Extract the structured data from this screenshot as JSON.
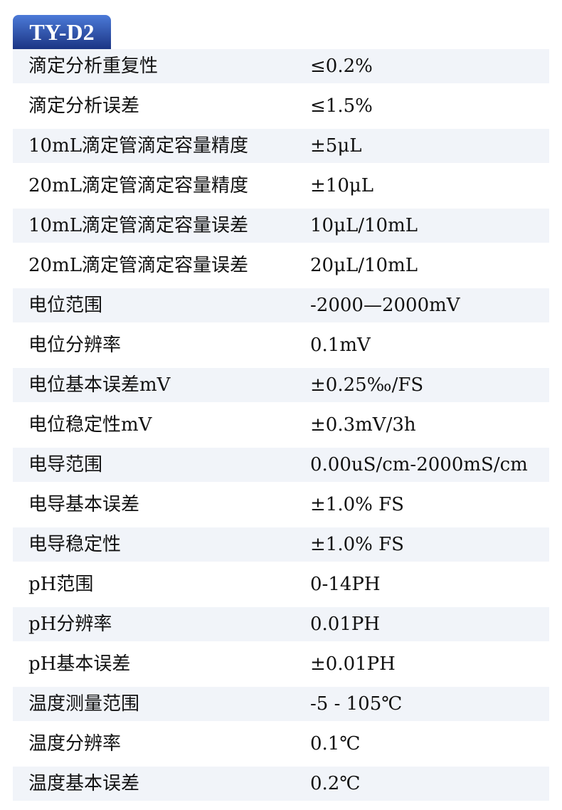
{
  "title": "TY-D2",
  "colors": {
    "header_top": "#4c7ad8",
    "header_bottom": "#1b3584",
    "row_shade": "#f1f4f9"
  },
  "rows": [
    {
      "label": "滴定分析重复性",
      "value": "≤0.2%"
    },
    {
      "label": "滴定分析误差",
      "value": "≤1.5%"
    },
    {
      "label": "10mL滴定管滴定容量精度",
      "value": "±5μL"
    },
    {
      "label": "20mL滴定管滴定容量精度",
      "value": "±10μL"
    },
    {
      "label": "10mL滴定管滴定容量误差",
      "value": "10μL/10mL"
    },
    {
      "label": "20mL滴定管滴定容量误差",
      "value": "20μL/10mL"
    },
    {
      "label": "电位范围",
      "value": "-2000—2000mV"
    },
    {
      "label": "电位分辨率",
      "value": "0.1mV"
    },
    {
      "label": "电位基本误差mV",
      "value": "±0.25‰/FS"
    },
    {
      "label": "电位稳定性mV",
      "value": "±0.3mV/3h"
    },
    {
      "label": "电导范围",
      "value": "0.00uS/cm-2000mS/cm"
    },
    {
      "label": "电导基本误差",
      "value": "±1.0% FS"
    },
    {
      "label": "电导稳定性",
      "value": "±1.0% FS"
    },
    {
      "label": "pH范围",
      "value": "0-14PH"
    },
    {
      "label": "pH分辨率",
      "value": "0.01PH"
    },
    {
      "label": "pH基本误差",
      "value": "±0.01PH"
    },
    {
      "label": "温度测量范围",
      "value": "-5 - 105℃"
    },
    {
      "label": "温度分辨率",
      "value": "0.1℃"
    },
    {
      "label": "温度基本误差",
      "value": "0.2℃"
    }
  ]
}
